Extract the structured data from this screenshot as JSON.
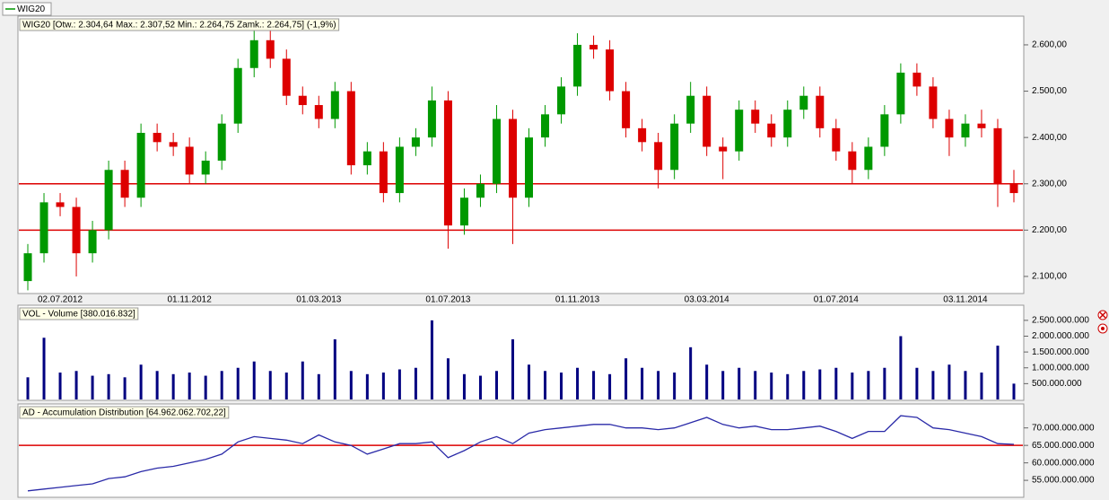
{
  "chart_data": [
    {
      "type": "candlestick",
      "name": "WIG20",
      "title": "WIG20 [Otw.: 2.304,64  Max.: 2.307,52  Min.: 2.264,75  Zamk.: 2.264,75] (-1,9%)",
      "categories": [
        null,
        null,
        "02.07.2012",
        null,
        null,
        null,
        null,
        null,
        null,
        null,
        "01.11.2012",
        null,
        null,
        null,
        null,
        null,
        null,
        null,
        "01.03.2013",
        null,
        null,
        null,
        null,
        null,
        null,
        null,
        "01.07.2013",
        null,
        null,
        null,
        null,
        null,
        null,
        null,
        "01.11.2013",
        null,
        null,
        null,
        null,
        null,
        null,
        null,
        "03.03.2014",
        null,
        null,
        null,
        null,
        null,
        null,
        null,
        "01.07.2014",
        null,
        null,
        null,
        null,
        null,
        null,
        null,
        "03.11.2014",
        null,
        null,
        null
      ],
      "open": [
        2090,
        2150,
        2260,
        2250,
        2150,
        2200,
        2330,
        2270,
        2410,
        2390,
        2380,
        2320,
        2350,
        2430,
        2550,
        2610,
        2570,
        2490,
        2470,
        2440,
        2500,
        2340,
        2370,
        2280,
        2380,
        2400,
        2480,
        2210,
        2270,
        2300,
        2440,
        2270,
        2400,
        2450,
        2510,
        2600,
        2590,
        2500,
        2420,
        2390,
        2330,
        2430,
        2490,
        2380,
        2370,
        2460,
        2430,
        2400,
        2460,
        2490,
        2420,
        2370,
        2330,
        2380,
        2450,
        2540,
        2510,
        2440,
        2400,
        2430,
        2420,
        2300
      ],
      "high": [
        2170,
        2280,
        2280,
        2270,
        2220,
        2350,
        2350,
        2430,
        2430,
        2410,
        2400,
        2370,
        2450,
        2570,
        2630,
        2630,
        2590,
        2510,
        2490,
        2520,
        2520,
        2390,
        2390,
        2400,
        2420,
        2510,
        2500,
        2290,
        2320,
        2470,
        2460,
        2420,
        2470,
        2530,
        2625,
        2620,
        2610,
        2520,
        2440,
        2410,
        2450,
        2520,
        2510,
        2400,
        2480,
        2480,
        2450,
        2480,
        2510,
        2510,
        2440,
        2390,
        2400,
        2470,
        2560,
        2560,
        2530,
        2460,
        2450,
        2460,
        2440,
        2330
      ],
      "low": [
        2070,
        2130,
        2230,
        2100,
        2130,
        2180,
        2250,
        2250,
        2370,
        2360,
        2300,
        2300,
        2330,
        2410,
        2530,
        2550,
        2470,
        2450,
        2420,
        2420,
        2320,
        2320,
        2260,
        2260,
        2360,
        2380,
        2160,
        2190,
        2250,
        2280,
        2170,
        2250,
        2380,
        2430,
        2490,
        2570,
        2480,
        2400,
        2370,
        2290,
        2310,
        2410,
        2360,
        2310,
        2350,
        2410,
        2380,
        2380,
        2440,
        2400,
        2350,
        2300,
        2310,
        2360,
        2430,
        2490,
        2420,
        2360,
        2380,
        2400,
        2250,
        2260
      ],
      "close": [
        2150,
        2260,
        2250,
        2150,
        2200,
        2330,
        2270,
        2410,
        2390,
        2380,
        2320,
        2350,
        2430,
        2550,
        2610,
        2570,
        2490,
        2470,
        2440,
        2500,
        2340,
        2370,
        2280,
        2380,
        2400,
        2480,
        2210,
        2270,
        2300,
        2440,
        2270,
        2400,
        2450,
        2510,
        2600,
        2590,
        2500,
        2420,
        2390,
        2330,
        2430,
        2490,
        2380,
        2370,
        2460,
        2430,
        2400,
        2460,
        2490,
        2420,
        2370,
        2330,
        2380,
        2450,
        2540,
        2510,
        2440,
        2400,
        2430,
        2420,
        2300,
        2280
      ],
      "up_color": "#009900",
      "down_color": "#dd0000",
      "legend_color": "#009900",
      "ylim": [
        2065,
        2660
      ],
      "yticks": [
        {
          "value": 2100,
          "label": "2.100,00"
        },
        {
          "value": 2200,
          "label": "2.200,00"
        },
        {
          "value": 2300,
          "label": "2.300,00"
        },
        {
          "value": 2400,
          "label": "2.400,00"
        },
        {
          "value": 2500,
          "label": "2.500,00"
        },
        {
          "value": 2600,
          "label": "2.600,00"
        }
      ],
      "hlines": [
        2300,
        2200
      ],
      "hline_color": "#dd0000"
    },
    {
      "type": "bar",
      "title": "VOL - Volume [380.016.832]",
      "color": "#000080",
      "values": [
        700000000,
        1950000000,
        850000000,
        900000000,
        750000000,
        800000000,
        700000000,
        1100000000,
        900000000,
        800000000,
        850000000,
        750000000,
        900000000,
        1000000000,
        1200000000,
        900000000,
        850000000,
        1200000000,
        800000000,
        1900000000,
        900000000,
        800000000,
        850000000,
        950000000,
        1000000000,
        2500000000,
        1300000000,
        800000000,
        750000000,
        900000000,
        1900000000,
        1100000000,
        900000000,
        850000000,
        1000000000,
        900000000,
        800000000,
        1300000000,
        1000000000,
        900000000,
        850000000,
        1650000000,
        1100000000,
        900000000,
        1000000000,
        900000000,
        850000000,
        800000000,
        900000000,
        950000000,
        1000000000,
        850000000,
        900000000,
        1000000000,
        2000000000,
        1000000000,
        900000000,
        1100000000,
        900000000,
        850000000,
        1700000000,
        500000000
      ],
      "ylim": [
        0,
        2950000000
      ],
      "yticks": [
        {
          "value": 500000000,
          "label": "500.000.000"
        },
        {
          "value": 1000000000,
          "label": "1.000.000.000"
        },
        {
          "value": 1500000000,
          "label": "1.500.000.000"
        },
        {
          "value": 2000000000,
          "label": "2.000.000.000"
        },
        {
          "value": 2500000000,
          "label": "2.500.000.000"
        }
      ]
    },
    {
      "type": "line",
      "title": "AD - Accumulation Distribution [64.962.062.702,22]",
      "color": "#2a2aa8",
      "values": [
        52000000000,
        52500000000,
        53000000000,
        53500000000,
        54000000000,
        55500000000,
        56000000000,
        57500000000,
        58500000000,
        59000000000,
        60000000000,
        61000000000,
        62500000000,
        66000000000,
        67500000000,
        67000000000,
        66500000000,
        65500000000,
        68000000000,
        66000000000,
        65000000000,
        62500000000,
        64000000000,
        65500000000,
        65500000000,
        66000000000,
        61500000000,
        63500000000,
        66000000000,
        67500000000,
        65500000000,
        68500000000,
        69500000000,
        70000000000,
        70500000000,
        71000000000,
        71000000000,
        70000000000,
        70000000000,
        69500000000,
        70000000000,
        71500000000,
        73000000000,
        71000000000,
        70000000000,
        70500000000,
        69500000000,
        69500000000,
        70000000000,
        70500000000,
        69000000000,
        67000000000,
        69000000000,
        69000000000,
        73500000000,
        73000000000,
        70000000000,
        69500000000,
        68500000000,
        67500000000,
        65500000000,
        65300000000
      ],
      "ylim": [
        50400000000,
        76600000000
      ],
      "yticks": [
        {
          "value": 55000000000,
          "label": "55.000.000.000"
        },
        {
          "value": 60000000000,
          "label": "60.000.000.000"
        },
        {
          "value": 65000000000,
          "label": "65.000.000.000"
        },
        {
          "value": 70000000000,
          "label": "70.000.000.000"
        }
      ],
      "hlines": [
        65000000000
      ],
      "hline_color": "#dd0000"
    }
  ]
}
